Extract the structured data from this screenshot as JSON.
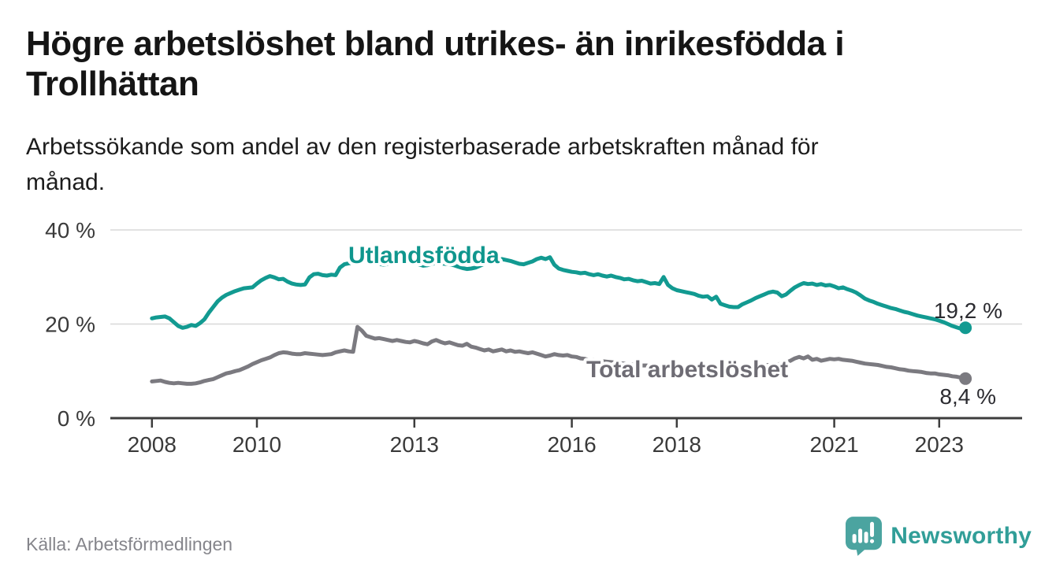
{
  "header": {
    "title_lines": [
      "Högre arbetslöshet bland utrikes- än inrikesfödda i",
      "Trollhättan"
    ],
    "subtitle_lines": [
      "Arbetssökande som andel av den registerbaserade arbetskraften månad för",
      "månad."
    ]
  },
  "footer": {
    "source": "Källa: Arbetsförmedlingen",
    "brand": "Newsworthy",
    "brand_text_color": "#319e98",
    "brand_icon_color": "#4ba4a0"
  },
  "chart_data": {
    "type": "line",
    "unit": "%",
    "x_axis": {
      "start_year": 2008,
      "interval": "monthly",
      "ticks": [
        2008,
        2010,
        2013,
        2016,
        2018,
        2021,
        2023
      ]
    },
    "y_axis": {
      "min": 0,
      "max": 43,
      "grid": true,
      "ticks": [
        {
          "value": 0,
          "label": "0 %"
        },
        {
          "value": 20,
          "label": "20 %"
        },
        {
          "value": 40,
          "label": "40 %"
        }
      ]
    },
    "legend": "inline-labels",
    "series": [
      {
        "name": "Utlandsfödda",
        "color": "#129a91",
        "label_color": "#0f968d",
        "end_label": "19,2 %",
        "end_value": 19.2,
        "values": [
          21.2,
          21.4,
          21.5,
          21.6,
          21.2,
          20.4,
          19.6,
          19.2,
          19.4,
          19.8,
          19.6,
          20.2,
          21.0,
          22.4,
          23.6,
          24.8,
          25.6,
          26.2,
          26.6,
          27.0,
          27.3,
          27.6,
          27.7,
          27.8,
          28.6,
          29.3,
          29.8,
          30.2,
          29.9,
          29.5,
          29.6,
          29.0,
          28.6,
          28.4,
          28.3,
          28.4,
          29.9,
          30.6,
          30.7,
          30.4,
          30.3,
          30.5,
          30.4,
          32.0,
          32.7,
          32.9,
          33.0,
          33.1,
          33.2,
          33.5,
          33.6,
          33.2,
          32.8,
          32.6,
          32.8,
          33.0,
          33.2,
          33.1,
          33.0,
          33.0,
          32.9,
          32.7,
          32.4,
          32.5,
          32.8,
          33.0,
          32.9,
          32.8,
          32.7,
          32.5,
          32.2,
          31.9,
          31.7,
          31.8,
          32.0,
          32.4,
          32.8,
          33.2,
          33.5,
          33.7,
          33.8,
          33.6,
          33.4,
          33.1,
          32.8,
          32.7,
          33.0,
          33.3,
          33.8,
          34.1,
          33.8,
          34.2,
          32.6,
          31.8,
          31.5,
          31.3,
          31.1,
          31.0,
          30.8,
          30.9,
          30.6,
          30.4,
          30.6,
          30.3,
          30.1,
          30.3,
          30.0,
          29.8,
          29.5,
          29.6,
          29.3,
          29.1,
          29.2,
          28.9,
          28.6,
          28.7,
          28.5,
          30.0,
          28.3,
          27.6,
          27.2,
          27.0,
          26.8,
          26.6,
          26.4,
          26.0,
          25.8,
          25.9,
          25.2,
          25.8,
          24.3,
          24.0,
          23.7,
          23.6,
          23.6,
          24.2,
          24.6,
          25.0,
          25.5,
          25.9,
          26.3,
          26.7,
          26.9,
          26.7,
          25.9,
          26.3,
          27.1,
          27.8,
          28.3,
          28.7,
          28.5,
          28.6,
          28.3,
          28.5,
          28.2,
          28.3,
          28.0,
          27.6,
          27.8,
          27.4,
          27.1,
          26.7,
          26.1,
          25.4,
          25.0,
          24.7,
          24.3,
          24.0,
          23.7,
          23.4,
          23.2,
          22.9,
          22.6,
          22.4,
          22.1,
          21.8,
          21.6,
          21.4,
          21.2,
          21.0,
          20.7,
          20.4,
          20.0,
          19.6,
          19.3,
          19.0,
          19.2
        ]
      },
      {
        "name": "Total arbetslöshet",
        "color": "#7b7a80",
        "label_color": "#6e6c74",
        "end_label": "8,4 %",
        "end_value": 8.4,
        "values": [
          7.8,
          7.9,
          8.0,
          7.7,
          7.5,
          7.4,
          7.5,
          7.4,
          7.3,
          7.3,
          7.4,
          7.6,
          7.9,
          8.1,
          8.3,
          8.7,
          9.1,
          9.5,
          9.7,
          10.0,
          10.2,
          10.6,
          11.0,
          11.5,
          11.9,
          12.3,
          12.6,
          12.9,
          13.4,
          13.8,
          14.0,
          13.9,
          13.7,
          13.6,
          13.6,
          13.8,
          13.7,
          13.6,
          13.5,
          13.4,
          13.5,
          13.6,
          14.0,
          14.2,
          14.4,
          14.2,
          14.1,
          19.4,
          18.6,
          17.5,
          17.2,
          16.9,
          17.0,
          16.8,
          16.6,
          16.4,
          16.6,
          16.4,
          16.2,
          16.1,
          16.4,
          16.2,
          15.9,
          15.7,
          16.3,
          16.6,
          16.2,
          15.9,
          16.1,
          15.8,
          15.5,
          15.4,
          15.8,
          15.2,
          15.0,
          14.7,
          14.4,
          14.6,
          14.2,
          14.4,
          14.6,
          14.2,
          14.4,
          14.1,
          14.2,
          14.0,
          13.8,
          14.0,
          13.7,
          13.4,
          13.1,
          13.3,
          13.6,
          13.4,
          13.3,
          13.4,
          13.1,
          13.0,
          12.7,
          12.6,
          12.3,
          12.4,
          12.2,
          12.1,
          12.0,
          11.9,
          11.8,
          11.7,
          11.6,
          11.5,
          11.4,
          11.3,
          11.2,
          11.2,
          11.1,
          11.0,
          11.0,
          10.9,
          10.9,
          10.8,
          10.8,
          10.7,
          10.7,
          10.6,
          10.6,
          10.5,
          10.5,
          10.6,
          10.6,
          10.7,
          10.7,
          10.8,
          10.8,
          10.9,
          10.9,
          11.0,
          11.0,
          11.1,
          11.1,
          11.2,
          11.2,
          11.3,
          11.3,
          11.4,
          11.6,
          11.8,
          12.2,
          12.7,
          13.0,
          12.7,
          13.1,
          12.4,
          12.6,
          12.2,
          12.4,
          12.6,
          12.5,
          12.6,
          12.4,
          12.3,
          12.2,
          12.0,
          11.8,
          11.6,
          11.5,
          11.4,
          11.3,
          11.1,
          10.9,
          10.8,
          10.6,
          10.4,
          10.3,
          10.1,
          10.0,
          9.9,
          9.8,
          9.6,
          9.5,
          9.5,
          9.3,
          9.2,
          9.1,
          8.9,
          8.8,
          8.6,
          8.4
        ]
      }
    ]
  }
}
